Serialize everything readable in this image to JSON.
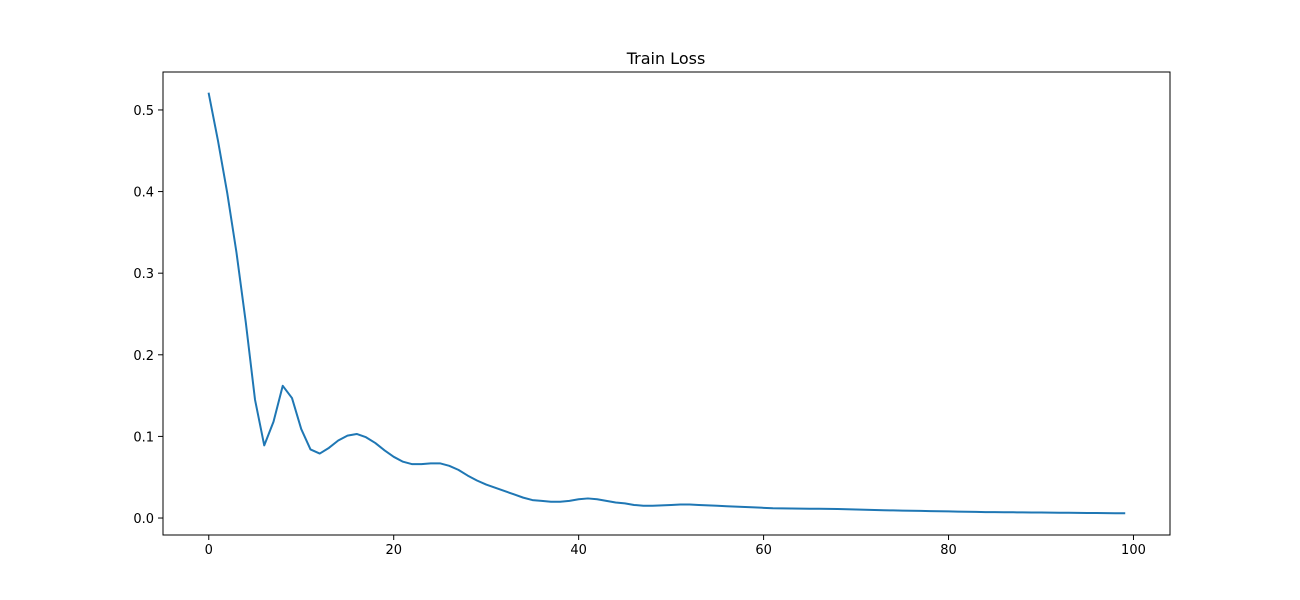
{
  "chart_data": {
    "type": "line",
    "title": "Train Loss",
    "xlabel": "",
    "ylabel": "",
    "xlim": [
      -4.95,
      103.95
    ],
    "ylim": [
      -0.0208,
      0.5465
    ],
    "xticks": [
      0,
      20,
      40,
      60,
      80,
      100
    ],
    "xtick_labels": [
      "0",
      "20",
      "40",
      "60",
      "80",
      "100"
    ],
    "yticks": [
      0.0,
      0.1,
      0.2,
      0.3,
      0.4,
      0.5
    ],
    "ytick_labels": [
      "0.0",
      "0.1",
      "0.2",
      "0.3",
      "0.4",
      "0.5"
    ],
    "grid": false,
    "legend": "none",
    "series": [
      {
        "color": "#1f77b4",
        "x": [
          0,
          1,
          2,
          3,
          4,
          5,
          6,
          7,
          8,
          9,
          10,
          11,
          12,
          13,
          14,
          15,
          16,
          17,
          18,
          19,
          20,
          21,
          22,
          23,
          24,
          25,
          26,
          27,
          28,
          29,
          30,
          31,
          32,
          33,
          34,
          35,
          36,
          37,
          38,
          39,
          40,
          41,
          42,
          43,
          44,
          45,
          46,
          47,
          48,
          49,
          50,
          51,
          52,
          53,
          54,
          55,
          56,
          57,
          58,
          59,
          60,
          61,
          62,
          63,
          64,
          65,
          66,
          67,
          68,
          69,
          70,
          71,
          72,
          73,
          74,
          75,
          76,
          77,
          78,
          79,
          80,
          81,
          82,
          83,
          84,
          85,
          86,
          87,
          88,
          89,
          90,
          91,
          92,
          93,
          94,
          95,
          96,
          97,
          98,
          99
        ],
        "y": [
          0.52,
          0.462,
          0.398,
          0.325,
          0.24,
          0.145,
          0.089,
          0.118,
          0.162,
          0.147,
          0.109,
          0.084,
          0.079,
          0.086,
          0.095,
          0.101,
          0.103,
          0.099,
          0.092,
          0.083,
          0.075,
          0.069,
          0.066,
          0.066,
          0.067,
          0.067,
          0.064,
          0.059,
          0.052,
          0.046,
          0.041,
          0.037,
          0.033,
          0.029,
          0.025,
          0.022,
          0.021,
          0.02,
          0.02,
          0.021,
          0.023,
          0.024,
          0.023,
          0.021,
          0.019,
          0.018,
          0.016,
          0.015,
          0.015,
          0.0155,
          0.016,
          0.0165,
          0.0165,
          0.016,
          0.0155,
          0.015,
          0.0145,
          0.014,
          0.0135,
          0.013,
          0.0125,
          0.012,
          0.0118,
          0.0116,
          0.0115,
          0.0114,
          0.0113,
          0.0112,
          0.011,
          0.0107,
          0.0104,
          0.0101,
          0.0098,
          0.0095,
          0.0093,
          0.0091,
          0.0089,
          0.0087,
          0.0085,
          0.0083,
          0.0081,
          0.0079,
          0.0077,
          0.0075,
          0.0073,
          0.0072,
          0.0071,
          0.007,
          0.0069,
          0.0068,
          0.0067,
          0.0066,
          0.0065,
          0.0064,
          0.0063,
          0.0062,
          0.0061,
          0.006,
          0.0059,
          0.0058
        ]
      }
    ]
  }
}
